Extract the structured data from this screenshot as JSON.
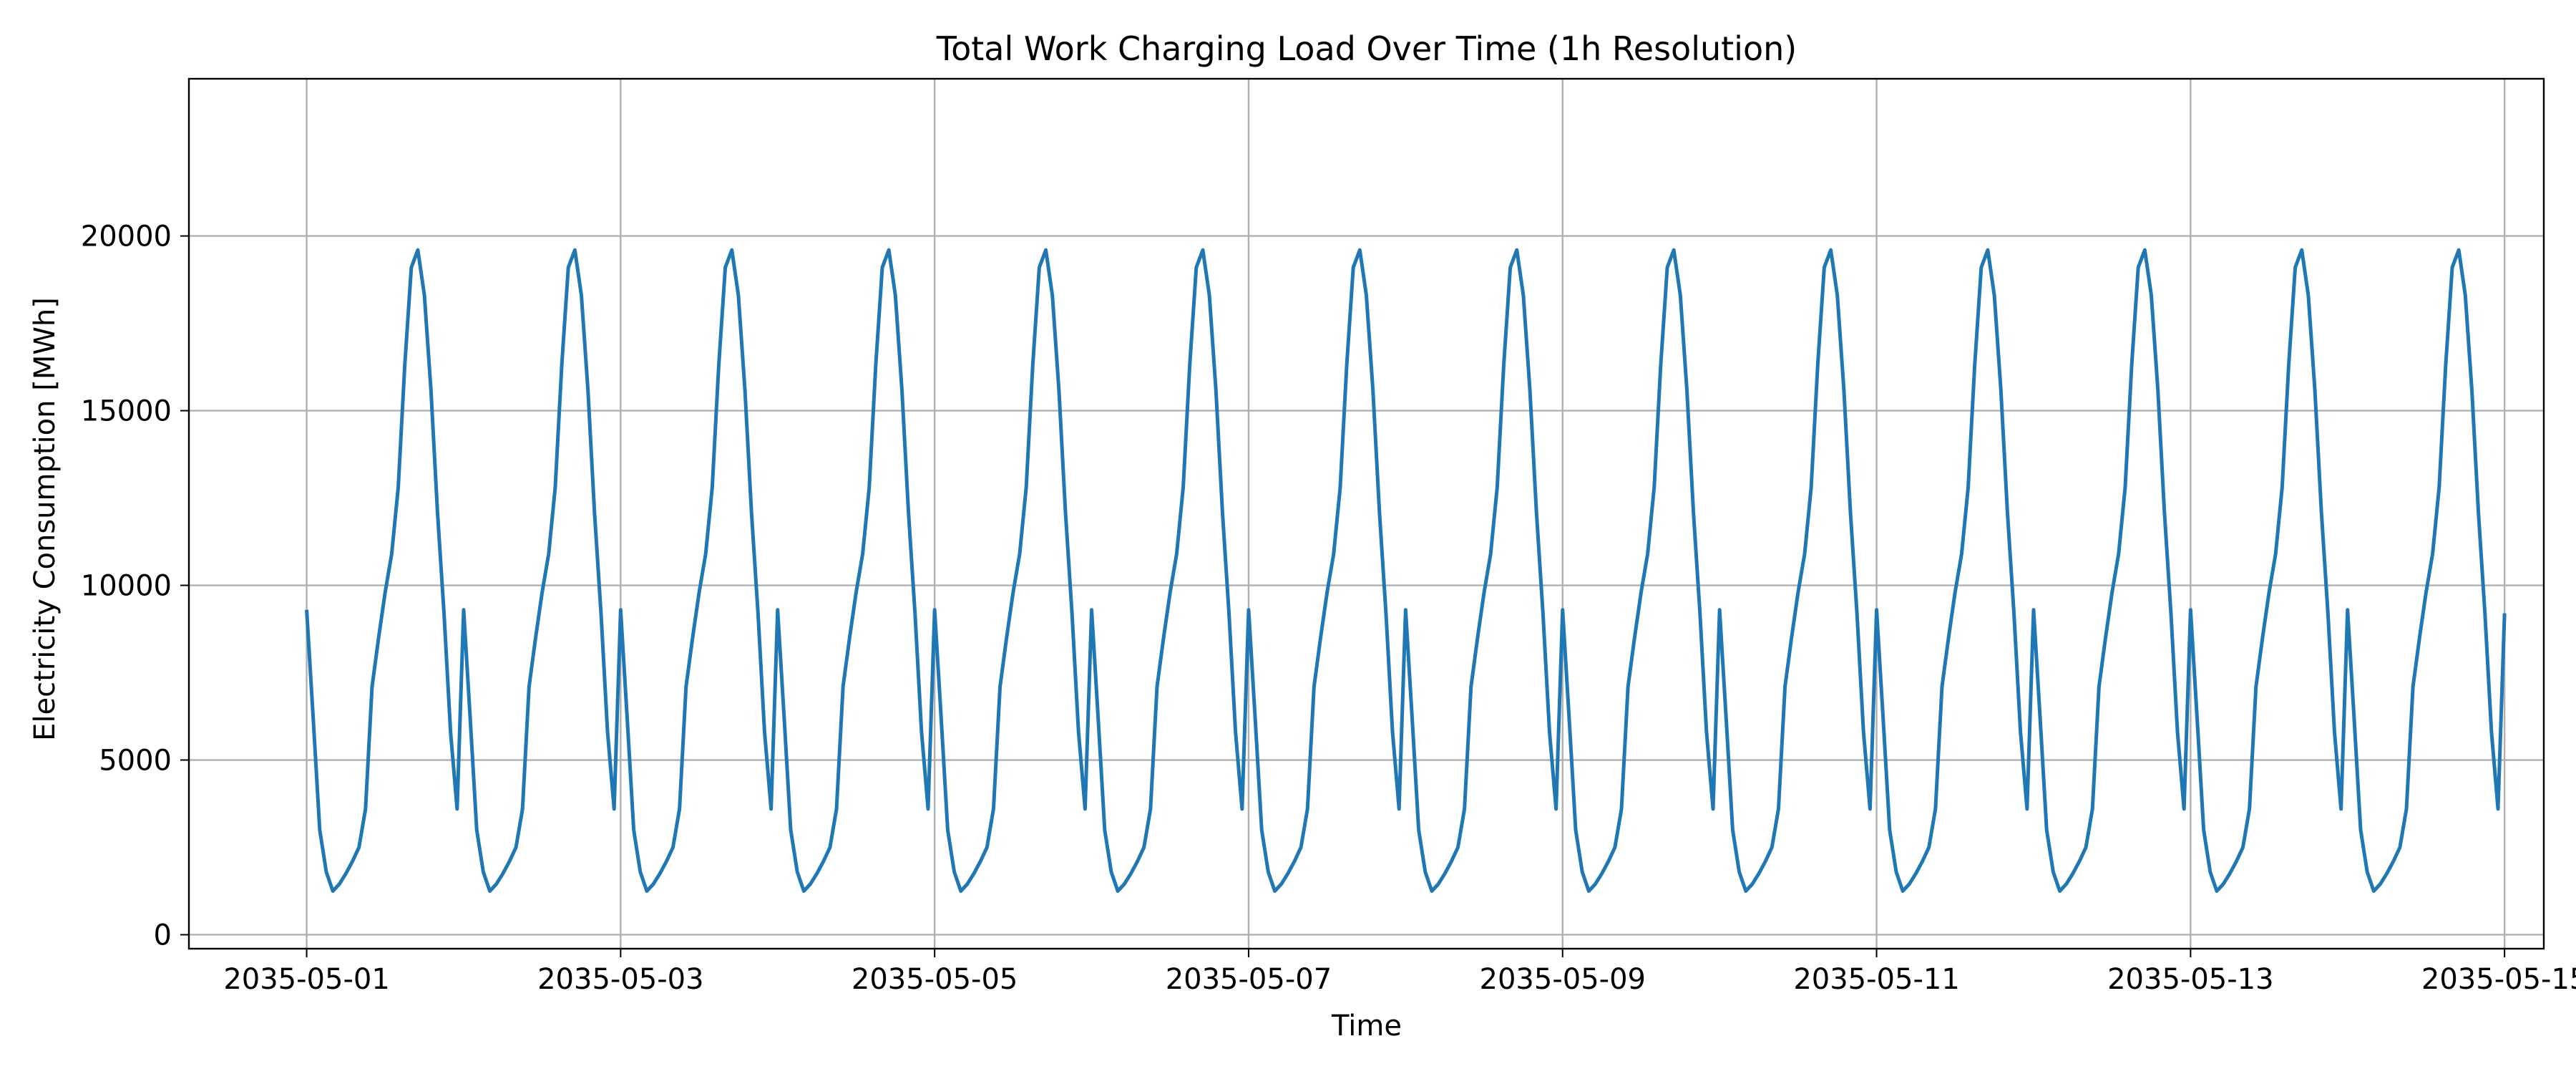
{
  "chart_data": {
    "type": "line",
    "title": "Total Work Charging Load Over Time (1h Resolution)",
    "xlabel": "Time",
    "ylabel": "Electricity Consumption [MWh]",
    "x_start": "2035-05-01T00:00",
    "x_end": "2035-05-15T00:00",
    "xlim": [
      "2035-04-30T06:00",
      "2035-05-15T06:00"
    ],
    "ylim": [
      -400,
      24500
    ],
    "x_ticks": [
      "2035-05-01",
      "2035-05-03",
      "2035-05-05",
      "2035-05-07",
      "2035-05-09",
      "2035-05-11",
      "2035-05-13",
      "2035-05-15"
    ],
    "y_ticks": [
      0,
      5000,
      10000,
      15000,
      20000
    ],
    "grid": true,
    "line_color": "#1f77b4",
    "series": [
      {
        "values": [
          9300,
          6200,
          3000,
          1800,
          1250,
          1450,
          1750,
          2100,
          2500,
          3600,
          7100,
          8500,
          9800,
          10900,
          12800,
          16300,
          19100,
          19600,
          18300,
          15600,
          12100,
          9200,
          5800,
          3600,
          9300,
          6200,
          3000,
          1800,
          1250,
          1450,
          1750,
          2100,
          2500,
          3600,
          7100,
          8500,
          9800,
          10900,
          12800,
          16300,
          19100,
          19600,
          18300,
          15600,
          12100,
          9200,
          5800,
          3600,
          9300,
          6200,
          3000,
          1800,
          1250,
          1450,
          1750,
          2100,
          2500,
          3600,
          7100,
          8500,
          9800,
          10900,
          12800,
          16300,
          19100,
          19600,
          18300,
          15600,
          12100,
          9200,
          5800,
          3600,
          9300,
          6200,
          3000,
          1800,
          1250,
          1450,
          1750,
          2100,
          2500,
          3600,
          7100,
          8500,
          9800,
          10900,
          12800,
          16300,
          19100,
          19600,
          18300,
          15600,
          12100,
          9200,
          5800,
          3600,
          9300,
          6200,
          3000,
          1800,
          1250,
          1450,
          1750,
          2100,
          2500,
          3600,
          7100,
          8500,
          9800,
          10900,
          12800,
          16300,
          19100,
          19600,
          18300,
          15600,
          12100,
          9200,
          5800,
          3600,
          9300,
          6200,
          3000,
          1800,
          1250,
          1450,
          1750,
          2100,
          2500,
          3600,
          7100,
          8500,
          9800,
          10900,
          12800,
          16300,
          19100,
          19600,
          18300,
          15600,
          12100,
          9200,
          5800,
          3600,
          9300,
          6200,
          3000,
          1800,
          1250,
          1450,
          1750,
          2100,
          2500,
          3600,
          7100,
          8500,
          9800,
          10900,
          12800,
          16300,
          19100,
          19600,
          18300,
          15600,
          12100,
          9200,
          5800,
          3600,
          9300,
          6200,
          3000,
          1800,
          1250,
          1450,
          1750,
          2100,
          2500,
          3600,
          7100,
          8500,
          9800,
          10900,
          12800,
          16300,
          19100,
          19600,
          18300,
          15600,
          12100,
          9200,
          5800,
          3600,
          9300,
          6200,
          3000,
          1800,
          1250,
          1450,
          1750,
          2100,
          2500,
          3600,
          7100,
          8500,
          9800,
          10900,
          12800,
          16300,
          19100,
          19600,
          18300,
          15600,
          12100,
          9200,
          5800,
          3600,
          9300,
          6200,
          3000,
          1800,
          1250,
          1450,
          1750,
          2100,
          2500,
          3600,
          7100,
          8500,
          9800,
          10900,
          12800,
          16300,
          19100,
          19600,
          18300,
          15600,
          12100,
          9200,
          5800,
          3600,
          9300,
          6200,
          3000,
          1800,
          1250,
          1450,
          1750,
          2100,
          2500,
          3600,
          7100,
          8500,
          9800,
          10900,
          12800,
          16300,
          19100,
          19600,
          18300,
          15600,
          12100,
          9200,
          5800,
          3600,
          9300,
          6200,
          3000,
          1800,
          1250,
          1450,
          1750,
          2100,
          2500,
          3600,
          7100,
          8500,
          9800,
          10900,
          12800,
          16300,
          19100,
          19600,
          18300,
          15600,
          12100,
          9200,
          5800,
          3600,
          9300,
          6200,
          3000,
          1800,
          1250,
          1450,
          1750,
          2100,
          2500,
          3600,
          7100,
          8500,
          9800,
          10900,
          12800,
          16300,
          19100,
          19600,
          18300,
          15600,
          12100,
          9200,
          5800,
          3600,
          9300,
          6200,
          3000,
          1800,
          1250,
          1450,
          1750,
          2100,
          2500,
          3600,
          7100,
          8500,
          9800,
          10900,
          12800,
          16300,
          19100,
          19600,
          18300,
          15600,
          12100,
          9200,
          5800,
          3600,
          9200
        ]
      }
    ]
  }
}
